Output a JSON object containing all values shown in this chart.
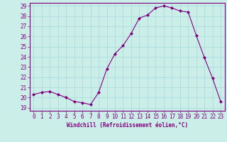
{
  "x": [
    0,
    1,
    2,
    3,
    4,
    5,
    6,
    7,
    8,
    9,
    10,
    11,
    12,
    13,
    14,
    15,
    16,
    17,
    18,
    19,
    20,
    21,
    22,
    23
  ],
  "y": [
    20.3,
    20.5,
    20.6,
    20.3,
    20.0,
    19.6,
    19.5,
    19.3,
    20.5,
    22.8,
    24.3,
    25.1,
    26.3,
    27.8,
    28.1,
    28.8,
    29.0,
    28.8,
    28.5,
    28.4,
    26.1,
    23.9,
    21.9,
    19.6
  ],
  "line_color": "#800080",
  "marker": "D",
  "marker_size": 2.0,
  "bg_color": "#cceee8",
  "grid_color": "#aadddd",
  "xlabel": "Windchill (Refroidissement éolien,°C)",
  "ylim_min": 19,
  "ylim_max": 29,
  "xlim_min": -0.5,
  "xlim_max": 23.5,
  "yticks": [
    19,
    20,
    21,
    22,
    23,
    24,
    25,
    26,
    27,
    28,
    29
  ],
  "xticks": [
    0,
    1,
    2,
    3,
    4,
    5,
    6,
    7,
    8,
    9,
    10,
    11,
    12,
    13,
    14,
    15,
    16,
    17,
    18,
    19,
    20,
    21,
    22,
    23
  ],
  "tick_color": "#800080",
  "label_color": "#800080",
  "axis_color": "#800080",
  "tick_fontsize": 5.5,
  "xlabel_fontsize": 5.5
}
